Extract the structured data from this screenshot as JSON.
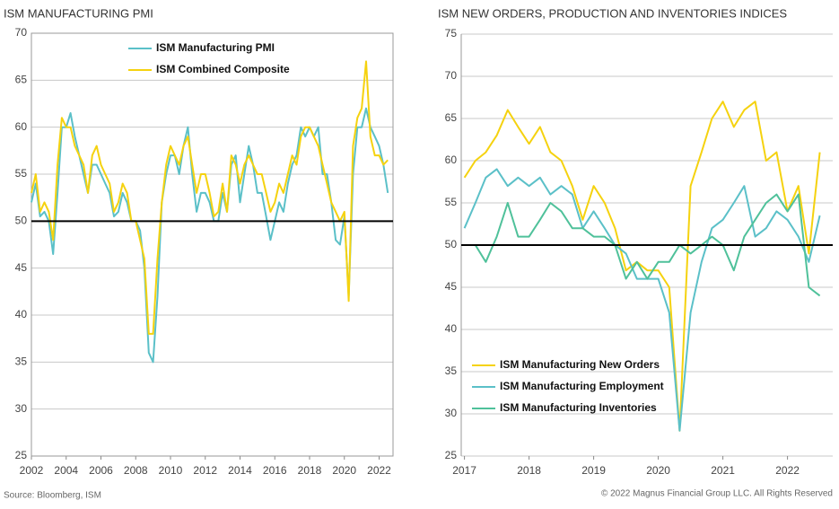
{
  "chart_data": [
    {
      "type": "line",
      "title": "ISM MANUFACTURING PMI",
      "x": [
        2002,
        2002.25,
        2002.5,
        2002.75,
        2003,
        2003.25,
        2003.5,
        2003.75,
        2004,
        2004.25,
        2004.5,
        2004.75,
        2005,
        2005.25,
        2005.5,
        2005.75,
        2006,
        2006.25,
        2006.5,
        2006.75,
        2007,
        2007.25,
        2007.5,
        2007.75,
        2008,
        2008.25,
        2008.5,
        2008.75,
        2009,
        2009.25,
        2009.5,
        2009.75,
        2010,
        2010.25,
        2010.5,
        2010.75,
        2011,
        2011.25,
        2011.5,
        2011.75,
        2012,
        2012.25,
        2012.5,
        2012.75,
        2013,
        2013.25,
        2013.5,
        2013.75,
        2014,
        2014.25,
        2014.5,
        2014.75,
        2015,
        2015.25,
        2015.5,
        2015.75,
        2016,
        2016.25,
        2016.5,
        2016.75,
        2017,
        2017.25,
        2017.5,
        2017.75,
        2018,
        2018.25,
        2018.5,
        2018.75,
        2019,
        2019.25,
        2019.5,
        2019.75,
        2020,
        2020.25,
        2020.5,
        2020.75,
        2021,
        2021.25,
        2021.5,
        2021.75,
        2022,
        2022.25,
        2022.5
      ],
      "series": [
        {
          "name": "ISM Manufacturing PMI",
          "color": "#5bc0c8",
          "values": [
            52,
            54,
            50.5,
            51,
            50,
            46.5,
            53,
            60,
            60,
            61.5,
            59,
            57,
            55,
            53,
            56,
            56,
            55,
            54,
            53,
            50.5,
            51,
            53,
            52,
            50,
            50,
            49,
            45,
            36,
            35,
            42,
            52,
            55,
            57,
            57,
            55,
            58,
            60,
            55,
            51,
            53,
            53,
            52,
            50,
            50,
            53,
            51,
            56,
            57,
            52,
            55,
            58,
            56,
            53,
            53,
            50.5,
            48,
            50,
            52,
            51,
            54,
            56,
            57,
            60,
            59,
            60,
            59,
            60,
            55,
            55,
            52,
            48,
            47.5,
            50.5,
            42,
            55,
            60,
            60,
            62,
            60,
            59,
            58,
            56,
            53
          ]
        },
        {
          "name": "ISM Combined Composite",
          "color": "#f5d20f",
          "values": [
            53,
            55,
            51,
            52,
            51,
            48,
            56,
            61,
            60,
            60,
            58,
            57,
            56,
            53,
            57,
            58,
            56,
            55,
            54,
            51,
            52,
            54,
            53,
            50,
            50,
            48,
            46,
            38,
            38,
            46,
            52,
            56,
            58,
            57,
            56,
            58,
            59,
            56,
            53,
            55,
            55,
            53,
            50.5,
            51,
            54,
            51,
            57,
            56,
            54,
            56,
            57,
            56,
            55,
            55,
            53,
            51,
            52,
            54,
            53,
            55,
            57,
            56,
            59,
            60,
            60,
            59,
            58,
            56,
            54,
            52,
            51,
            50,
            51,
            41.5,
            58,
            61,
            62,
            67,
            59,
            57,
            57,
            56,
            56.5
          ]
        }
      ],
      "xlim": [
        2002,
        2022.8
      ],
      "xticks": [
        2002,
        2004,
        2006,
        2008,
        2010,
        2012,
        2014,
        2016,
        2018,
        2020,
        2022
      ],
      "ylim": [
        25,
        70
      ],
      "yticks": [
        25,
        30,
        35,
        40,
        45,
        50,
        55,
        60,
        65,
        70
      ],
      "reference_line": 50,
      "grid": true,
      "legend": "top"
    },
    {
      "type": "line",
      "title": "ISM NEW ORDERS, PRODUCTION AND INVENTORIES INDICES",
      "x": [
        2017,
        2017.17,
        2017.33,
        2017.5,
        2017.67,
        2017.83,
        2018,
        2018.17,
        2018.33,
        2018.5,
        2018.67,
        2018.83,
        2019,
        2019.17,
        2019.33,
        2019.5,
        2019.67,
        2019.83,
        2020,
        2020.17,
        2020.33,
        2020.5,
        2020.67,
        2020.83,
        2021,
        2021.17,
        2021.33,
        2021.5,
        2021.67,
        2021.83,
        2022,
        2022.17,
        2022.33,
        2022.5
      ],
      "series": [
        {
          "name": "ISM Manufacturing New Orders",
          "color": "#f5d20f",
          "values": [
            58,
            60,
            61,
            63,
            66,
            64,
            62,
            64,
            61,
            60,
            57,
            53,
            57,
            55,
            52,
            47,
            48,
            47,
            47,
            45,
            28,
            57,
            61,
            65,
            67,
            64,
            66,
            67,
            60,
            61,
            54,
            57,
            49,
            61
          ]
        },
        {
          "name": "ISM Manufacturing Employment",
          "color": "#5bc0c8",
          "values": [
            52,
            55,
            58,
            59,
            57,
            58,
            57,
            58,
            56,
            57,
            56,
            52,
            54,
            52,
            50,
            49,
            46,
            46,
            46,
            42,
            28,
            42,
            48,
            52,
            53,
            55,
            57,
            51,
            52,
            54,
            53,
            51,
            48,
            53.5
          ]
        },
        {
          "name": "ISM Manufacturing Inventories",
          "color": "#4fc19a",
          "values": [
            50,
            50,
            48,
            51,
            55,
            51,
            51,
            53,
            55,
            54,
            52,
            52,
            51,
            51,
            50,
            46,
            48,
            46,
            48,
            48,
            50,
            49,
            50,
            51,
            50,
            47,
            51,
            53,
            55,
            56,
            54,
            56,
            45,
            44
          ]
        }
      ],
      "xlim": [
        2016.95,
        2022.7
      ],
      "xticks": [
        2017,
        2018,
        2019,
        2020,
        2021,
        2022
      ],
      "ylim": [
        25,
        75
      ],
      "yticks": [
        25,
        30,
        35,
        40,
        45,
        50,
        55,
        60,
        65,
        70,
        75
      ],
      "reference_line": 50,
      "grid": true,
      "legend": "bottom-left"
    }
  ],
  "footer": {
    "source": "Source: Bloomberg, ISM",
    "copyright": "© 2022 Magnus Financial Group LLC. All Rights Reserved"
  }
}
